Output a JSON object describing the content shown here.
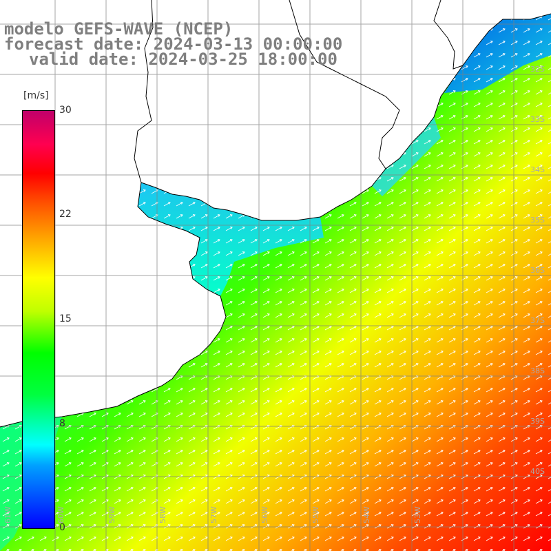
{
  "title": {
    "line1": "modelo GEFS-WAVE (NCEP)",
    "line2": "forecast date: 2024-03-13 00:00:00",
    "line3": "valid date: 2024-03-25 18:00:00"
  },
  "colorbar": {
    "unit": "[m/s]",
    "ticks": [
      "30",
      "22",
      "15",
      "8",
      "0"
    ],
    "colors": [
      "#0000ff",
      "#00ffff",
      "#00ff00",
      "#ffff00",
      "#ff0000",
      "#c0006a"
    ]
  },
  "latitude_labels": [
    "32S",
    "33S",
    "34S",
    "35S",
    "36S",
    "37S",
    "38S",
    "39S",
    "40S"
  ],
  "longitude_labels": [
    "61W",
    "60W",
    "59W",
    "58W",
    "57W",
    "56W",
    "55W",
    "54W",
    "53W"
  ],
  "colors": {
    "land": "#ffffff",
    "coast": "#000000",
    "grid": "#808080",
    "arrows": "#ffffff",
    "title": "#7f7f7f"
  }
}
